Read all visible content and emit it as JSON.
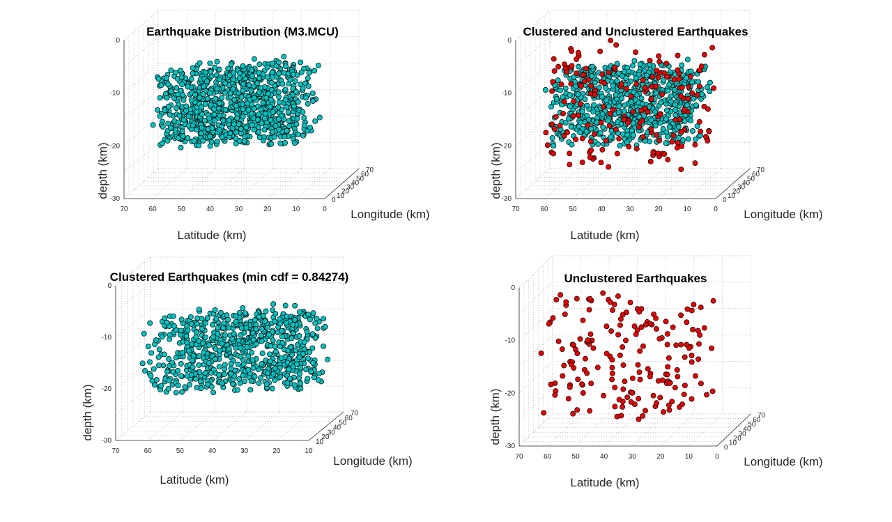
{
  "colors": {
    "clustered": "#00bfbf",
    "unclustered": "#e60000"
  },
  "chart_data": [
    {
      "type": "scatter",
      "title": "Earthquake Distribution (M3.MCU)",
      "xlabel": "Longitude (km)",
      "ylabel": "Latitude (km)",
      "zlabel": "depth (km)",
      "xlim": [
        0,
        70
      ],
      "ylim": [
        0,
        70
      ],
      "zlim": [
        -30,
        0
      ],
      "xticks": [
        "0",
        "10",
        "20",
        "30",
        "40",
        "50",
        "60",
        "70"
      ],
      "yticks": [
        "0",
        "10",
        "20",
        "30",
        "40",
        "50",
        "60",
        "70"
      ],
      "zticks": [
        "0",
        "-10",
        "-20",
        "-30"
      ],
      "grid": true,
      "series": [
        {
          "color_key": "clustered",
          "count": 900
        }
      ]
    },
    {
      "type": "scatter",
      "title": "Clustered and Unclustered Earthquakes",
      "xlabel": "Longitude (km)",
      "ylabel": "Latitude (km)",
      "zlabel": "depth (km)",
      "xlim": [
        0,
        70
      ],
      "ylim": [
        0,
        70
      ],
      "zlim": [
        -30,
        0
      ],
      "xticks": [
        "0",
        "10",
        "20",
        "30",
        "40",
        "50",
        "60",
        "70"
      ],
      "yticks": [
        "0",
        "10",
        "20",
        "30",
        "40",
        "50",
        "60",
        "70"
      ],
      "zticks": [
        "0",
        "-10",
        "-20",
        "-30"
      ],
      "grid": true,
      "series": [
        {
          "color_key": "clustered",
          "count": 720
        },
        {
          "color_key": "unclustered",
          "count": 180
        }
      ]
    },
    {
      "type": "scatter",
      "title": "Clustered Earthquakes (min cdf = 0.84274)",
      "xlabel": "Longitude (km)",
      "ylabel": "Latitude (km)",
      "zlabel": "depth (km)",
      "xlim": [
        10,
        70
      ],
      "ylim": [
        10,
        70
      ],
      "zlim": [
        -30,
        0
      ],
      "xticks": [
        "10",
        "20",
        "30",
        "40",
        "50",
        "60",
        "70"
      ],
      "yticks": [
        "10",
        "20",
        "30",
        "40",
        "50",
        "60",
        "70"
      ],
      "zticks": [
        "0",
        "-10",
        "-20",
        "-30"
      ],
      "grid": true,
      "series": [
        {
          "color_key": "clustered",
          "count": 720
        }
      ]
    },
    {
      "type": "scatter",
      "title": "Unclustered Earthquakes",
      "xlabel": "Longitude (km)",
      "ylabel": "Latitude (km)",
      "zlabel": "depth (km)",
      "xlim": [
        0,
        70
      ],
      "ylim": [
        0,
        70
      ],
      "zlim": [
        -30,
        0
      ],
      "xticks": [
        "0",
        "10",
        "20",
        "30",
        "40",
        "50",
        "60",
        "70"
      ],
      "yticks": [
        "0",
        "10",
        "20",
        "30",
        "40",
        "50",
        "60",
        "70"
      ],
      "zticks": [
        "0",
        "-10",
        "-20",
        "-30"
      ],
      "grid": true,
      "series": [
        {
          "color_key": "unclustered",
          "count": 180
        }
      ]
    }
  ]
}
